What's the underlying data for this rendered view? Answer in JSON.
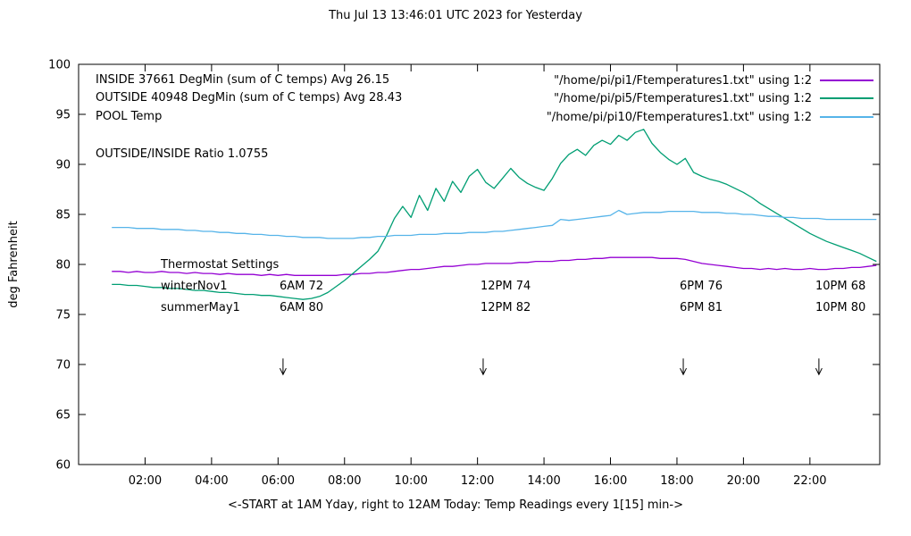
{
  "title": "Thu Jul 13 13:46:01 UTC 2023 for Yesterday",
  "xlabel": "<-START at 1AM Yday, right to 12AM Today:  Temp Readings every 1[15] min->",
  "ylabel": "deg Fahrenheit",
  "labels": {
    "inside": "INSIDE 37661 DegMin (sum of C temps) Avg 26.15",
    "outside": "OUTSIDE 40948 DegMin (sum of C temps) Avg 28.43",
    "pool": "POOL Temp",
    "ratio": "OUTSIDE/INSIDE Ratio 1.0755"
  },
  "legend": {
    "entries": [
      {
        "name": "inside",
        "label": "\"/home/pi/pi1/Ftemperatures1.txt\" using 1:2",
        "color": "#9400D3"
      },
      {
        "name": "outside",
        "label": "\"/home/pi/pi5/Ftemperatures1.txt\" using 1:2",
        "color": "#009E73"
      },
      {
        "name": "pool",
        "label": "\"/home/pi/pi10/Ftemperatures1.txt\" using 1:2",
        "color": "#56B4E9"
      }
    ]
  },
  "thermostat": {
    "heading": "Thermostat Settings",
    "rows": [
      {
        "name": "winterNov1",
        "values": [
          "6AM 72",
          "12PM 74",
          "6PM 76",
          "10PM 68"
        ]
      },
      {
        "name": "summerMay1",
        "values": [
          "6AM 80",
          "12PM 82",
          "6PM 81",
          "10PM 80"
        ]
      }
    ]
  },
  "chart_data": {
    "type": "line",
    "title": "Thu Jul 13 13:46:01 UTC 2023 for Yesterday",
    "xlabel": "<-START at 1AM Yday, right to 12AM Today:  Temp Readings every 1[15] min->",
    "ylabel": "deg Fahrenheit",
    "x_start_hour": 1,
    "x_step_hours": 0.25,
    "xlim_hours": [
      0,
      24.1
    ],
    "ylim": [
      60,
      100
    ],
    "yticks": [
      60,
      65,
      70,
      75,
      80,
      85,
      90,
      95,
      100
    ],
    "xticks": [
      {
        "hour": 2,
        "label": "02:00"
      },
      {
        "hour": 4,
        "label": "04:00"
      },
      {
        "hour": 6,
        "label": "06:00"
      },
      {
        "hour": 8,
        "label": "08:00"
      },
      {
        "hour": 10,
        "label": "10:00"
      },
      {
        "hour": 12,
        "label": "12:00"
      },
      {
        "hour": 14,
        "label": "14:00"
      },
      {
        "hour": 16,
        "label": "16:00"
      },
      {
        "hour": 18,
        "label": "18:00"
      },
      {
        "hour": 20,
        "label": "20:00"
      },
      {
        "hour": 22,
        "label": "22:00"
      }
    ],
    "arrow_marker_hours": [
      6.15,
      12.17,
      18.19,
      22.27
    ],
    "arrow_y_from": 70.6,
    "arrow_y_to": 69.0,
    "grid": false,
    "legend_position": "top-right",
    "series": [
      {
        "name": "INSIDE",
        "color": "#9400D3",
        "values": [
          79.3,
          79.3,
          79.2,
          79.3,
          79.2,
          79.2,
          79.3,
          79.2,
          79.2,
          79.1,
          79.2,
          79.1,
          79.1,
          79.0,
          79.1,
          79.0,
          79.0,
          79.0,
          78.9,
          79.0,
          78.9,
          79.0,
          78.9,
          78.9,
          78.9,
          78.9,
          78.9,
          78.9,
          79.0,
          79.0,
          79.1,
          79.1,
          79.2,
          79.2,
          79.3,
          79.4,
          79.5,
          79.5,
          79.6,
          79.7,
          79.8,
          79.8,
          79.9,
          80.0,
          80.0,
          80.1,
          80.1,
          80.1,
          80.1,
          80.2,
          80.2,
          80.3,
          80.3,
          80.3,
          80.4,
          80.4,
          80.5,
          80.5,
          80.6,
          80.6,
          80.7,
          80.7,
          80.7,
          80.7,
          80.7,
          80.7,
          80.6,
          80.6,
          80.6,
          80.5,
          80.3,
          80.1,
          80.0,
          79.9,
          79.8,
          79.7,
          79.6,
          79.6,
          79.5,
          79.6,
          79.5,
          79.6,
          79.5,
          79.5,
          79.6,
          79.5,
          79.5,
          79.6,
          79.6,
          79.7,
          79.7,
          79.8,
          79.9
        ]
      },
      {
        "name": "OUTSIDE",
        "color": "#009E73",
        "values": [
          78.0,
          78.0,
          77.9,
          77.9,
          77.8,
          77.7,
          77.7,
          77.6,
          77.6,
          77.5,
          77.4,
          77.4,
          77.3,
          77.2,
          77.2,
          77.1,
          77.0,
          77.0,
          76.9,
          76.9,
          76.8,
          76.7,
          76.6,
          76.5,
          76.6,
          76.8,
          77.2,
          77.8,
          78.4,
          79.1,
          79.8,
          80.5,
          81.3,
          82.8,
          84.6,
          85.8,
          84.7,
          86.9,
          85.4,
          87.6,
          86.3,
          88.3,
          87.2,
          88.8,
          89.5,
          88.2,
          87.6,
          88.6,
          89.6,
          88.7,
          88.1,
          87.7,
          87.4,
          88.6,
          90.1,
          91.0,
          91.5,
          90.9,
          91.9,
          92.4,
          92.0,
          92.9,
          92.4,
          93.2,
          93.5,
          92.1,
          91.2,
          90.5,
          90.0,
          90.6,
          89.2,
          88.8,
          88.5,
          88.3,
          88.0,
          87.6,
          87.2,
          86.7,
          86.1,
          85.6,
          85.1,
          84.6,
          84.1,
          83.6,
          83.1,
          82.7,
          82.3,
          82.0,
          81.7,
          81.4,
          81.1,
          80.7,
          80.3
        ]
      },
      {
        "name": "POOL",
        "color": "#56B4E9",
        "values": [
          83.7,
          83.7,
          83.7,
          83.6,
          83.6,
          83.6,
          83.5,
          83.5,
          83.5,
          83.4,
          83.4,
          83.3,
          83.3,
          83.2,
          83.2,
          83.1,
          83.1,
          83.0,
          83.0,
          82.9,
          82.9,
          82.8,
          82.8,
          82.7,
          82.7,
          82.7,
          82.6,
          82.6,
          82.6,
          82.6,
          82.7,
          82.7,
          82.8,
          82.8,
          82.9,
          82.9,
          82.9,
          83.0,
          83.0,
          83.0,
          83.1,
          83.1,
          83.1,
          83.2,
          83.2,
          83.2,
          83.3,
          83.3,
          83.4,
          83.5,
          83.6,
          83.7,
          83.8,
          83.9,
          84.5,
          84.4,
          84.5,
          84.6,
          84.7,
          84.8,
          84.9,
          85.4,
          85.0,
          85.1,
          85.2,
          85.2,
          85.2,
          85.3,
          85.3,
          85.3,
          85.3,
          85.2,
          85.2,
          85.2,
          85.1,
          85.1,
          85.0,
          85.0,
          84.9,
          84.8,
          84.8,
          84.7,
          84.7,
          84.6,
          84.6,
          84.6,
          84.5,
          84.5,
          84.5,
          84.5,
          84.5,
          84.5,
          84.5
        ]
      }
    ]
  }
}
